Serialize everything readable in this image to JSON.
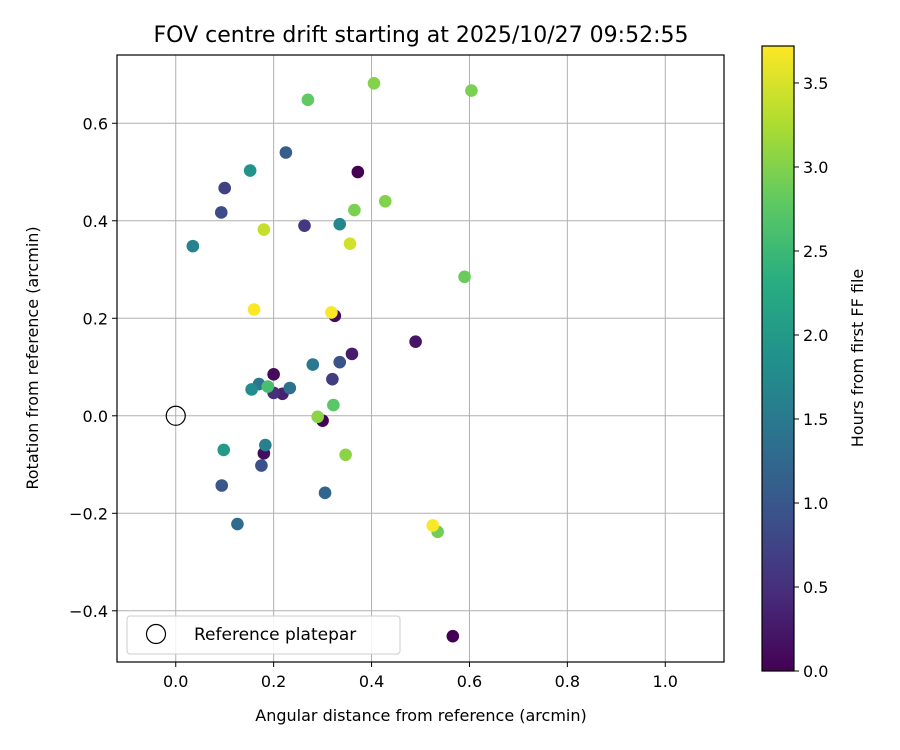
{
  "chart_data": {
    "type": "scatter",
    "title": "FOV centre drift starting at 2025/10/27 09:52:55",
    "xlabel": "Angular distance from reference (arcmin)",
    "ylabel": "Rotation from reference (arcmin)",
    "xlim": [
      -0.12,
      1.12
    ],
    "ylim": [
      -0.505,
      0.74
    ],
    "xticks": [
      0.0,
      0.2,
      0.4,
      0.6,
      0.8,
      1.0
    ],
    "xtick_labels": [
      "0.0",
      "0.2",
      "0.4",
      "0.6",
      "0.8",
      "1.0"
    ],
    "yticks": [
      -0.4,
      -0.2,
      0.0,
      0.2,
      0.4,
      0.6
    ],
    "ytick_labels": [
      "−0.4",
      "−0.2",
      "0.0",
      "0.2",
      "0.4",
      "0.6"
    ],
    "grid": true,
    "colormap": "viridis",
    "colorbar": {
      "label": "Hours from first FF file",
      "range": [
        0.0,
        3.72
      ],
      "ticks": [
        0.0,
        0.5,
        1.0,
        1.5,
        2.0,
        2.5,
        3.0,
        3.5
      ],
      "tick_labels": [
        "0.0",
        "0.5",
        "1.0",
        "1.5",
        "2.0",
        "2.5",
        "3.0",
        "3.5"
      ]
    },
    "reference": {
      "x": 0.0,
      "y": 0.0,
      "label": "Reference platepar"
    },
    "legend_position": "lower-left",
    "points": [
      {
        "x": 0.372,
        "y": 0.5,
        "h": 0.0
      },
      {
        "x": 0.566,
        "y": -0.452,
        "h": 0.0
      },
      {
        "x": 0.3,
        "y": -0.01,
        "h": 0.02
      },
      {
        "x": 0.325,
        "y": 0.205,
        "h": 0.08
      },
      {
        "x": 0.2,
        "y": 0.085,
        "h": 0.1
      },
      {
        "x": 0.18,
        "y": -0.077,
        "h": 0.15
      },
      {
        "x": 0.49,
        "y": 0.152,
        "h": 0.2
      },
      {
        "x": 0.36,
        "y": 0.127,
        "h": 0.3
      },
      {
        "x": 0.218,
        "y": 0.045,
        "h": 0.35
      },
      {
        "x": 0.2,
        "y": 0.047,
        "h": 0.5
      },
      {
        "x": 0.263,
        "y": 0.39,
        "h": 0.6
      },
      {
        "x": 0.32,
        "y": 0.075,
        "h": 0.65
      },
      {
        "x": 0.1,
        "y": 0.467,
        "h": 0.7
      },
      {
        "x": 0.093,
        "y": 0.417,
        "h": 0.85
      },
      {
        "x": 0.175,
        "y": -0.102,
        "h": 0.9
      },
      {
        "x": 0.335,
        "y": 0.11,
        "h": 0.95
      },
      {
        "x": 0.094,
        "y": -0.143,
        "h": 1.0
      },
      {
        "x": 0.225,
        "y": 0.54,
        "h": 1.1
      },
      {
        "x": 0.305,
        "y": -0.158,
        "h": 1.2
      },
      {
        "x": 0.126,
        "y": -0.222,
        "h": 1.3
      },
      {
        "x": 0.233,
        "y": 0.057,
        "h": 1.4
      },
      {
        "x": 0.17,
        "y": 0.065,
        "h": 1.45
      },
      {
        "x": 0.28,
        "y": 0.105,
        "h": 1.5
      },
      {
        "x": 0.183,
        "y": -0.06,
        "h": 1.6
      },
      {
        "x": 0.035,
        "y": 0.348,
        "h": 1.65
      },
      {
        "x": 0.335,
        "y": 0.393,
        "h": 1.7
      },
      {
        "x": 0.155,
        "y": 0.054,
        "h": 1.8
      },
      {
        "x": 0.152,
        "y": 0.503,
        "h": 1.9
      },
      {
        "x": 0.098,
        "y": -0.07,
        "h": 2.0
      },
      {
        "x": 0.188,
        "y": 0.06,
        "h": 2.6
      },
      {
        "x": 0.322,
        "y": 0.022,
        "h": 2.75
      },
      {
        "x": 0.27,
        "y": 0.648,
        "h": 2.8
      },
      {
        "x": 0.59,
        "y": 0.285,
        "h": 2.85
      },
      {
        "x": 0.535,
        "y": -0.238,
        "h": 2.9
      },
      {
        "x": 0.365,
        "y": 0.422,
        "h": 2.95
      },
      {
        "x": 0.604,
        "y": 0.667,
        "h": 2.95
      },
      {
        "x": 0.405,
        "y": 0.682,
        "h": 3.0
      },
      {
        "x": 0.428,
        "y": 0.44,
        "h": 3.0
      },
      {
        "x": 0.347,
        "y": -0.08,
        "h": 3.05
      },
      {
        "x": 0.29,
        "y": -0.002,
        "h": 3.05
      },
      {
        "x": 0.18,
        "y": 0.382,
        "h": 3.4
      },
      {
        "x": 0.356,
        "y": 0.353,
        "h": 3.45
      },
      {
        "x": 0.16,
        "y": 0.218,
        "h": 3.7
      },
      {
        "x": 0.318,
        "y": 0.212,
        "h": 3.7
      },
      {
        "x": 0.525,
        "y": -0.225,
        "h": 3.7
      }
    ]
  }
}
